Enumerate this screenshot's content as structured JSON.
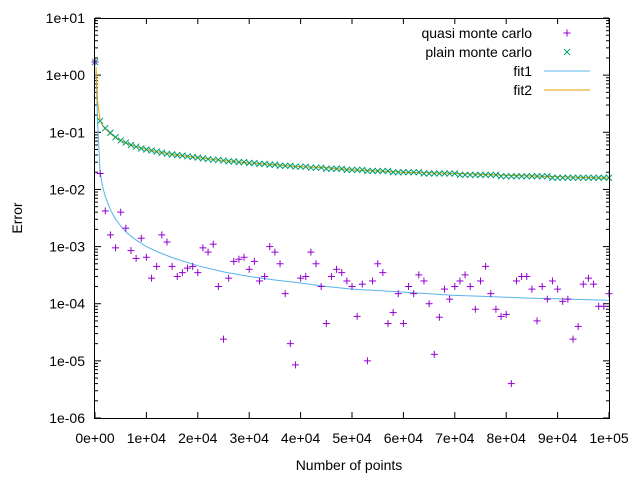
{
  "chart_data": {
    "type": "scatter",
    "xlabel": "Number of points",
    "ylabel": "Error",
    "x_scale": "linear",
    "y_scale": "log",
    "xlim": [
      0,
      100000
    ],
    "ylim": [
      1e-06,
      10
    ],
    "x_ticks": [
      {
        "value": 0,
        "label": "0e+00"
      },
      {
        "value": 10000,
        "label": "1e+04"
      },
      {
        "value": 20000,
        "label": "2e+04"
      },
      {
        "value": 30000,
        "label": "3e+04"
      },
      {
        "value": 40000,
        "label": "4e+04"
      },
      {
        "value": 50000,
        "label": "5e+04"
      },
      {
        "value": 60000,
        "label": "6e+04"
      },
      {
        "value": 70000,
        "label": "7e+04"
      },
      {
        "value": 80000,
        "label": "8e+04"
      },
      {
        "value": 90000,
        "label": "9e+04"
      },
      {
        "value": 100000,
        "label": "1e+05"
      }
    ],
    "y_ticks": [
      {
        "value": 1e-06,
        "label": "1e-06"
      },
      {
        "value": 1e-05,
        "label": "1e-05"
      },
      {
        "value": 0.0001,
        "label": "1e-04"
      },
      {
        "value": 0.001,
        "label": "1e-03"
      },
      {
        "value": 0.01,
        "label": "1e-02"
      },
      {
        "value": 0.1,
        "label": "1e-01"
      },
      {
        "value": 1,
        "label": "1e+00"
      },
      {
        "value": 10,
        "label": "1e+01"
      }
    ],
    "grid": false,
    "legend_position": "top-right",
    "series": [
      {
        "name": "quasi monte carlo",
        "kind": "points",
        "marker": "plus",
        "color": "#9400d3",
        "x": [
          0,
          1000,
          2000,
          3000,
          4000,
          5000,
          6000,
          7000,
          8000,
          9000,
          10000,
          11000,
          12000,
          13000,
          14000,
          15000,
          16000,
          17000,
          18000,
          19000,
          20000,
          21000,
          22000,
          23000,
          24000,
          25000,
          26000,
          27000,
          28000,
          29000,
          30000,
          31000,
          32000,
          33000,
          34000,
          35000,
          36000,
          37000,
          38000,
          39000,
          40000,
          41000,
          42000,
          43000,
          44000,
          45000,
          46000,
          47000,
          48000,
          49000,
          50000,
          51000,
          52000,
          53000,
          54000,
          55000,
          56000,
          57000,
          58000,
          59000,
          60000,
          61000,
          62000,
          63000,
          64000,
          65000,
          66000,
          67000,
          68000,
          69000,
          70000,
          71000,
          72000,
          73000,
          74000,
          75000,
          76000,
          77000,
          78000,
          79000,
          80000,
          81000,
          82000,
          83000,
          84000,
          85000,
          86000,
          87000,
          88000,
          89000,
          90000,
          91000,
          92000,
          93000,
          94000,
          95000,
          96000,
          97000,
          98000,
          99000,
          100000
        ],
        "y": [
          1.7,
          0.019,
          0.0042,
          0.0016,
          0.00095,
          0.004,
          0.0021,
          0.00085,
          0.00062,
          0.0014,
          0.00065,
          0.00028,
          0.00045,
          0.0016,
          0.0012,
          0.00045,
          0.0003,
          0.00035,
          0.00042,
          0.00045,
          0.00035,
          0.00095,
          0.0008,
          0.0011,
          0.0002,
          2.4e-05,
          0.00028,
          0.00055,
          0.0006,
          0.00065,
          0.0004,
          0.00055,
          0.00025,
          0.0003,
          0.001,
          0.0008,
          0.0005,
          0.00015,
          2e-05,
          8.5e-06,
          0.00028,
          0.0003,
          0.0008,
          0.0005,
          0.0002,
          4.5e-05,
          0.0003,
          0.0004,
          0.00035,
          0.00025,
          0.0002,
          6e-05,
          0.00022,
          1e-05,
          0.00025,
          0.0005,
          0.00035,
          4.5e-05,
          7e-05,
          0.00015,
          4.5e-05,
          0.0002,
          0.00015,
          0.00032,
          0.00025,
          0.0001,
          1.3e-05,
          5.8e-05,
          0.00018,
          0.00012,
          0.0002,
          0.00025,
          0.00032,
          0.0002,
          8e-05,
          0.00025,
          0.00045,
          0.00015,
          8e-05,
          6e-05,
          6.5e-05,
          4e-06,
          0.00025,
          0.0003,
          0.0003,
          0.00018,
          5e-05,
          0.0002,
          0.00012,
          0.00025,
          0.00018,
          0.00011,
          0.00012,
          2.4e-05,
          4e-05,
          0.00022,
          0.00028,
          0.00022,
          9e-05,
          9e-05,
          0.00015
        ]
      },
      {
        "name": "plain monte carlo",
        "kind": "points",
        "marker": "cross",
        "color": "#009e73",
        "x": [
          0,
          1000,
          2000,
          3000,
          4000,
          5000,
          6000,
          7000,
          8000,
          9000,
          10000,
          11000,
          12000,
          13000,
          14000,
          15000,
          16000,
          17000,
          18000,
          19000,
          20000,
          21000,
          22000,
          23000,
          24000,
          25000,
          26000,
          27000,
          28000,
          29000,
          30000,
          31000,
          32000,
          33000,
          34000,
          35000,
          36000,
          37000,
          38000,
          39000,
          40000,
          41000,
          42000,
          43000,
          44000,
          45000,
          46000,
          47000,
          48000,
          49000,
          50000,
          51000,
          52000,
          53000,
          54000,
          55000,
          56000,
          57000,
          58000,
          59000,
          60000,
          61000,
          62000,
          63000,
          64000,
          65000,
          66000,
          67000,
          68000,
          69000,
          70000,
          71000,
          72000,
          73000,
          74000,
          75000,
          76000,
          77000,
          78000,
          79000,
          80000,
          81000,
          82000,
          83000,
          84000,
          85000,
          86000,
          87000,
          88000,
          89000,
          90000,
          91000,
          92000,
          93000,
          94000,
          95000,
          96000,
          97000,
          98000,
          99000,
          100000
        ],
        "y": [
          1.7,
          0.158,
          0.118,
          0.098,
          0.082,
          0.072,
          0.066,
          0.06,
          0.056,
          0.052,
          0.05,
          0.048,
          0.046,
          0.044,
          0.042,
          0.041,
          0.04,
          0.039,
          0.038,
          0.037,
          0.036,
          0.035,
          0.034,
          0.033,
          0.033,
          0.032,
          0.031,
          0.031,
          0.03,
          0.03,
          0.029,
          0.029,
          0.028,
          0.028,
          0.027,
          0.027,
          0.026,
          0.026,
          0.026,
          0.025,
          0.025,
          0.025,
          0.024,
          0.024,
          0.024,
          0.023,
          0.023,
          0.023,
          0.023,
          0.022,
          0.022,
          0.022,
          0.022,
          0.021,
          0.021,
          0.021,
          0.021,
          0.021,
          0.02,
          0.02,
          0.02,
          0.02,
          0.02,
          0.02,
          0.019,
          0.019,
          0.019,
          0.019,
          0.019,
          0.019,
          0.019,
          0.018,
          0.018,
          0.018,
          0.018,
          0.018,
          0.018,
          0.018,
          0.018,
          0.017,
          0.017,
          0.017,
          0.017,
          0.017,
          0.017,
          0.017,
          0.017,
          0.017,
          0.017,
          0.016,
          0.016,
          0.016,
          0.016,
          0.016,
          0.016,
          0.016,
          0.016,
          0.016,
          0.016,
          0.016,
          0.016
        ]
      },
      {
        "name": "fit1",
        "kind": "line",
        "color": "#56b4e9",
        "x": [
          200,
          500,
          1000,
          1500,
          2000,
          3000,
          4000,
          5000,
          6000,
          8000,
          10000,
          12000,
          15000,
          20000,
          25000,
          30000,
          35000,
          40000,
          45000,
          50000,
          55000,
          60000,
          65000,
          70000,
          75000,
          80000,
          85000,
          90000,
          95000,
          100000
        ],
        "y": [
          1.2,
          0.15,
          0.02,
          0.011,
          0.0075,
          0.0044,
          0.003,
          0.0023,
          0.0018,
          0.0013,
          0.001,
          0.00082,
          0.00064,
          0.00046,
          0.00036,
          0.0003,
          0.00026,
          0.00023,
          0.0002,
          0.00018,
          0.00017,
          0.00016,
          0.00015,
          0.00014,
          0.000135,
          0.00013,
          0.000125,
          0.000122,
          0.000118,
          0.000115
        ]
      },
      {
        "name": "fit2",
        "kind": "line",
        "color": "#e69f00",
        "x": [
          200,
          500,
          1000,
          1500,
          2000,
          3000,
          4000,
          5000,
          6000,
          8000,
          10000,
          12000,
          15000,
          20000,
          25000,
          30000,
          35000,
          40000,
          45000,
          50000,
          55000,
          60000,
          65000,
          70000,
          75000,
          80000,
          85000,
          90000,
          95000,
          100000
        ],
        "y": [
          1.4,
          0.35,
          0.16,
          0.13,
          0.115,
          0.095,
          0.08,
          0.071,
          0.065,
          0.056,
          0.05,
          0.046,
          0.041,
          0.036,
          0.032,
          0.029,
          0.027,
          0.025,
          0.024,
          0.022,
          0.021,
          0.02,
          0.0195,
          0.019,
          0.0183,
          0.0177,
          0.0172,
          0.0167,
          0.0162,
          0.0158
        ]
      }
    ]
  }
}
